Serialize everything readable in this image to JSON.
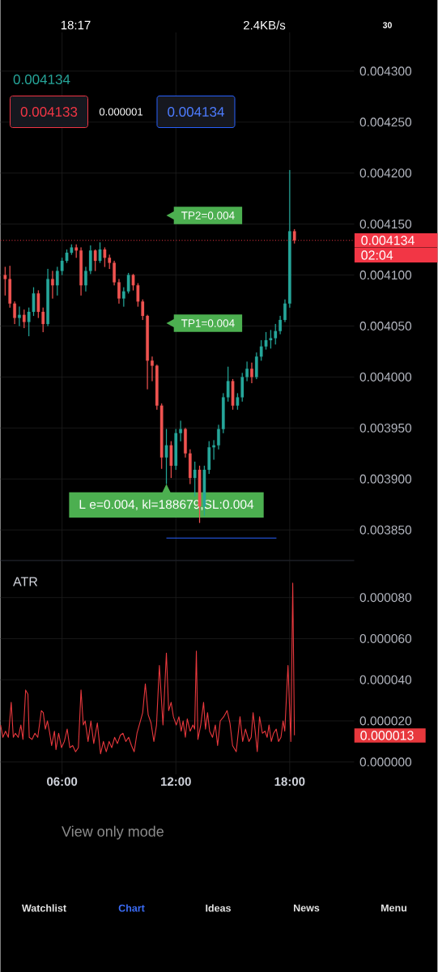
{
  "chart_data": [
    {
      "type": "candlestick",
      "x": [
        3,
        3.25,
        3.5,
        3.75,
        4,
        4.25,
        4.5,
        4.75,
        5,
        5.25,
        5.5,
        5.75,
        6,
        6.25,
        6.5,
        6.75,
        7,
        7.25,
        7.5,
        7.75,
        8,
        8.25,
        8.5,
        8.75,
        9,
        9.25,
        9.5,
        9.75,
        10,
        10.25,
        10.5,
        10.75,
        11,
        11.25,
        11.5,
        11.75,
        12,
        12.25,
        12.5,
        12.75,
        13,
        13.25,
        13.5,
        13.75,
        14,
        14.25,
        14.5,
        14.75,
        15,
        15.25,
        15.5,
        15.75,
        16,
        16.25,
        16.5,
        16.75,
        17,
        17.25,
        17.5,
        17.75,
        18,
        18.25
      ],
      "ohlc": [
        [
          0.0041,
          0.004108,
          0.00408,
          0.004096
        ],
        [
          0.004096,
          0.004109,
          0.004068,
          0.004072
        ],
        [
          0.004072,
          0.004074,
          0.004052,
          0.004058
        ],
        [
          0.004058,
          0.004069,
          0.00405,
          0.004061
        ],
        [
          0.004061,
          0.004066,
          0.004048,
          0.004054
        ],
        [
          0.004054,
          0.004068,
          0.00404,
          0.004064
        ],
        [
          0.004064,
          0.004088,
          0.00406,
          0.004082
        ],
        [
          0.004082,
          0.004085,
          0.004058,
          0.004064
        ],
        [
          0.004064,
          0.004068,
          0.004044,
          0.004052
        ],
        [
          0.004052,
          0.004106,
          0.00405,
          0.004096
        ],
        [
          0.004096,
          0.004104,
          0.004077,
          0.00409
        ],
        [
          0.00409,
          0.004108,
          0.00408,
          0.004104
        ],
        [
          0.004104,
          0.004117,
          0.0041,
          0.004114
        ],
        [
          0.004114,
          0.004125,
          0.004112,
          0.004122
        ],
        [
          0.004122,
          0.00413,
          0.00412,
          0.004127
        ],
        [
          0.004127,
          0.00413,
          0.004117,
          0.004124
        ],
        [
          0.004124,
          0.004127,
          0.00408,
          0.00409
        ],
        [
          0.00409,
          0.004108,
          0.004084,
          0.004104
        ],
        [
          0.004104,
          0.004129,
          0.004101,
          0.004124
        ],
        [
          0.004124,
          0.004125,
          0.004104,
          0.004114
        ],
        [
          0.004114,
          0.004132,
          0.004112,
          0.004125
        ],
        [
          0.004125,
          0.004127,
          0.004108,
          0.004117
        ],
        [
          0.004117,
          0.00412,
          0.004106,
          0.004112
        ],
        [
          0.004112,
          0.004114,
          0.00409,
          0.004093
        ],
        [
          0.004093,
          0.004096,
          0.004072,
          0.004077
        ],
        [
          0.004077,
          0.004088,
          0.004069,
          0.004084
        ],
        [
          0.004084,
          0.004102,
          0.004082,
          0.0041
        ],
        [
          0.0041,
          0.004101,
          0.004085,
          0.00409
        ],
        [
          0.00409,
          0.004092,
          0.004069,
          0.004074
        ],
        [
          0.004074,
          0.004076,
          0.004056,
          0.00406
        ],
        [
          0.00406,
          0.004061,
          0.003988,
          0.004016
        ],
        [
          0.004016,
          0.00402,
          0.003996,
          0.004011
        ],
        [
          0.004011,
          0.004012,
          0.003968,
          0.003972
        ],
        [
          0.003972,
          0.003974,
          0.00391,
          0.003921
        ],
        [
          0.003921,
          0.003949,
          0.003895,
          0.003933
        ],
        [
          0.003933,
          0.003937,
          0.003901,
          0.003913
        ],
        [
          0.003913,
          0.003949,
          0.003909,
          0.003945
        ],
        [
          0.003945,
          0.003957,
          0.003937,
          0.003949
        ],
        [
          0.003949,
          0.00395,
          0.003921,
          0.003925
        ],
        [
          0.003925,
          0.003929,
          0.003895,
          0.003901
        ],
        [
          0.003901,
          0.003917,
          0.003883,
          0.003909
        ],
        [
          0.003909,
          0.003913,
          0.003857,
          0.003873
        ],
        [
          0.003873,
          0.003913,
          0.003864,
          0.003909
        ],
        [
          0.003909,
          0.003937,
          0.003905,
          0.003931
        ],
        [
          0.003931,
          0.003938,
          0.003919,
          0.003933
        ],
        [
          0.003933,
          0.003953,
          0.003929,
          0.003949
        ],
        [
          0.003949,
          0.003984,
          0.003945,
          0.00398
        ],
        [
          0.00398,
          0.00401,
          0.003976,
          0.003996
        ],
        [
          0.003996,
          0.003998,
          0.003968,
          0.003972
        ],
        [
          0.003972,
          0.003984,
          0.003968,
          0.00398
        ],
        [
          0.00398,
          0.004004,
          0.003976,
          0.004
        ],
        [
          0.004,
          0.004015,
          0.003996,
          0.004008
        ],
        [
          0.004008,
          0.004014,
          0.003994,
          0.004
        ],
        [
          0.004,
          0.004024,
          0.003998,
          0.00402
        ],
        [
          0.00402,
          0.004036,
          0.004016,
          0.00403
        ],
        [
          0.00403,
          0.004044,
          0.004027,
          0.004036
        ],
        [
          0.004036,
          0.004046,
          0.004028,
          0.004038
        ],
        [
          0.004038,
          0.004052,
          0.004032,
          0.004045
        ],
        [
          0.004045,
          0.00406,
          0.004042,
          0.004056
        ],
        [
          0.004056,
          0.004076,
          0.004054,
          0.004072
        ],
        [
          0.004072,
          0.004203,
          0.004068,
          0.004143
        ],
        [
          0.004143,
          0.004145,
          0.004131,
          0.004134
        ]
      ],
      "colors": [
        "#ef5350",
        "#ef5350",
        "#ef5350",
        "#26a69a",
        "#ef5350",
        "#26a69a",
        "#26a69a",
        "#ef5350",
        "#ef5350",
        "#26a69a",
        "#ef5350",
        "#26a69a",
        "#26a69a",
        "#26a69a",
        "#26a69a",
        "#ef5350",
        "#ef5350",
        "#26a69a",
        "#26a69a",
        "#ef5350",
        "#26a69a",
        "#ef5350",
        "#ef5350",
        "#ef5350",
        "#ef5350",
        "#26a69a",
        "#26a69a",
        "#ef5350",
        "#ef5350",
        "#ef5350",
        "#ef5350",
        "#ef5350",
        "#ef5350",
        "#ef5350",
        "#26a69a",
        "#ef5350",
        "#26a69a",
        "#26a69a",
        "#ef5350",
        "#ef5350",
        "#26a69a",
        "#ef5350",
        "#26a69a",
        "#26a69a",
        "#26a69a",
        "#26a69a",
        "#26a69a",
        "#26a69a",
        "#ef5350",
        "#26a69a",
        "#26a69a",
        "#26a69a",
        "#ef5350",
        "#26a69a",
        "#26a69a",
        "#26a69a",
        "#26a69a",
        "#26a69a",
        "#26a69a",
        "#26a69a",
        "#26a69a",
        "#ef5350"
      ],
      "series": [
        {
          "type": "line",
          "x": [
            11.5,
            17.3
          ],
          "values": [
            0.003842,
            0.003842
          ],
          "color": "#2962ff"
        }
      ],
      "xlim": [
        2.75,
        21.4
      ],
      "xticks": [
        {
          "value": 6,
          "label": null
        },
        {
          "value": 12,
          "label": null
        },
        {
          "value": 18,
          "label": null
        }
      ],
      "ylim": [
        0.00382,
        0.004338
      ],
      "yticks": [
        {
          "value": 0.00385,
          "label": "0.003850"
        },
        {
          "value": 0.0039,
          "label": "0.003900"
        },
        {
          "value": 0.00395,
          "label": "0.003950"
        },
        {
          "value": 0.004,
          "label": "0.004000"
        },
        {
          "value": 0.00405,
          "label": "0.004050"
        },
        {
          "value": 0.0041,
          "label": "0.004100"
        },
        {
          "value": 0.00415,
          "label": "0.004150"
        },
        {
          "value": 0.0042,
          "label": "0.004200"
        },
        {
          "value": 0.00425,
          "label": "0.004250"
        },
        {
          "value": 0.0043,
          "label": "0.004300"
        }
      ],
      "tick_labels": "y",
      "grid": true,
      "ref_lines": [
        {
          "axis": "y",
          "value": 0.004134,
          "label": "0.004134",
          "color": "#f23645",
          "line_style": "dotted"
        }
      ],
      "annotations": [
        "18:17",
        "2.4KB/s",
        "30",
        "0.004134",
        "0.004133",
        "0.000001",
        "0.004134",
        "02:04",
        "TP2=0.004",
        "TP1=0.004",
        {
          "text": "L e=0.004, kl=188679,SL:0.004",
          "x": 11.5,
          "y": 0.003895
        }
      ]
    },
    {
      "type": "line",
      "title": "ATR",
      "x": [
        2.76,
        2.88,
        3.02,
        3.17,
        3.32,
        3.43,
        3.54,
        3.69,
        3.83,
        3.94,
        4.08,
        4.2,
        4.27,
        4.42,
        4.57,
        4.72,
        4.91,
        5.01,
        5.12,
        5.23,
        5.35,
        5.45,
        5.6,
        5.68,
        5.82,
        5.97,
        6.12,
        6.27,
        6.41,
        6.56,
        6.71,
        6.86,
        7.0,
        7.12,
        7.22,
        7.37,
        7.52,
        7.67,
        7.86,
        8.03,
        8.18,
        8.33,
        8.48,
        8.62,
        8.77,
        8.92,
        9.07,
        9.21,
        9.36,
        9.51,
        9.66,
        9.8,
        9.95,
        10.1,
        10.25,
        10.39,
        10.54,
        10.69,
        10.84,
        10.98,
        11.13,
        11.32,
        11.5,
        11.62,
        11.75,
        11.87,
        12.02,
        12.16,
        12.28,
        12.38,
        12.5,
        12.6,
        12.75,
        12.9,
        12.99,
        13.08,
        13.16,
        13.31,
        13.46,
        13.56,
        13.67,
        13.78,
        13.93,
        14.08,
        14.2,
        14.34,
        14.52,
        14.7,
        14.85,
        14.99,
        15.18,
        15.38,
        15.52,
        15.67,
        15.85,
        15.97,
        16.07,
        16.17,
        16.29,
        16.41,
        16.56,
        16.7,
        16.81,
        16.91,
        17.03,
        17.15,
        17.29,
        17.41,
        17.54,
        17.65,
        17.74,
        17.91,
        18.06,
        18.16,
        18.25
      ],
      "series": [
        {
          "color": "#e8383d",
          "values": [
            1.8e-05,
            1.2e-05,
            1.5e-05,
            1.2e-05,
            2.9e-05,
            1.2e-05,
            1.4e-05,
            1.2e-05,
            1.8e-05,
            1.1e-05,
            3.5e-05,
            3.3e-05,
            1.2e-05,
            1.1e-05,
            1.4e-05,
            1.2e-05,
            2.5e-05,
            2.4e-05,
            1.6e-05,
            2e-05,
            1.4e-05,
            8e-06,
            1.5e-05,
            6e-06,
            1.4e-05,
            7e-06,
            1e-05,
            1.6e-05,
            7e-06,
            8e-06,
            5e-06,
            7e-06,
            3.5e-05,
            1.8e-05,
            2e-05,
            1e-05,
            2e-05,
            9e-06,
            1.9e-05,
            4e-06,
            1e-05,
            5e-06,
            1e-05,
            7e-06,
            1.2e-05,
            9e-06,
            1.3e-05,
            1.4e-05,
            1e-05,
            1.2e-05,
            8e-06,
            5e-06,
            1.4e-05,
            1.9e-05,
            2.4e-05,
            3.8e-05,
            2.3e-05,
            1.9e-05,
            1e-05,
            1.8e-05,
            4.7e-05,
            1.8e-05,
            5.3e-05,
            2.5e-05,
            2.9e-05,
            2.2e-05,
            1.8e-05,
            2.2e-05,
            1.5e-05,
            2e-05,
            1.2e-05,
            2.1e-05,
            1.5e-05,
            1.8e-05,
            1.6e-05,
            5.4e-05,
            1.1e-05,
            1.8e-05,
            2.9e-05,
            1.6e-05,
            2.4e-05,
            1.5e-05,
            1.2e-05,
            1.8e-05,
            8e-06,
            2e-05,
            2.2e-05,
            2.5e-05,
            1.9e-05,
            8e-06,
            5e-06,
            2.2e-05,
            1e-05,
            1.6e-05,
            1e-05,
            1.2e-05,
            2.4e-05,
            1.6e-05,
            5e-06,
            2.2e-05,
            1.4e-05,
            1.5e-05,
            1.2e-05,
            1.8e-05,
            1e-05,
            1.4e-05,
            1.6e-05,
            1e-05,
            1.2e-05,
            2e-05,
            1.5e-05,
            4.7e-05,
            1e-05,
            8.7e-05,
            1.3e-05
          ]
        }
      ],
      "xlim": [
        2.75,
        21.4
      ],
      "xticks": [
        {
          "value": 6,
          "label": "06:00"
        },
        {
          "value": 12,
          "label": "12:00"
        },
        {
          "value": 18,
          "label": "18:00"
        }
      ],
      "ylim": [
        -6e-06,
        9.8e-05
      ],
      "yticks": [
        {
          "value": 0,
          "label": "0.000000"
        },
        {
          "value": 2e-05,
          "label": "0.000020"
        },
        {
          "value": 4e-05,
          "label": "0.000040"
        },
        {
          "value": 6e-05,
          "label": "0.000060"
        },
        {
          "value": 8e-05,
          "label": "0.000080"
        }
      ],
      "grid": true,
      "annotations": [
        "0.000013",
        "View only mode",
        "Watchlist",
        "Chart",
        "Ideas",
        "News",
        "Menu"
      ]
    }
  ]
}
